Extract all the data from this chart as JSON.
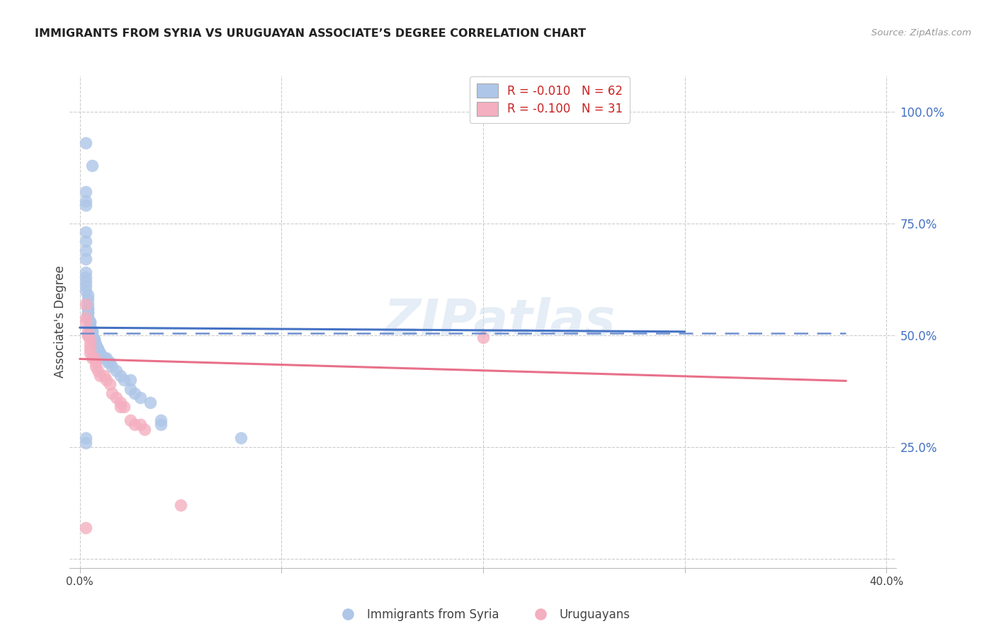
{
  "title": "IMMIGRANTS FROM SYRIA VS URUGUAYAN ASSOCIATE’S DEGREE CORRELATION CHART",
  "source": "Source: ZipAtlas.com",
  "ylabel": "Associate's Degree",
  "watermark": "ZIPatlas",
  "legend1_label": "R = -0.010   N = 62",
  "legend2_label": "R = -0.100   N = 31",
  "blue_color": "#aec6e8",
  "blue_line_color": "#4472C4",
  "blue_dashed_color": "#7090d0",
  "pink_color": "#f4afc0",
  "pink_line_color": "#e8708a",
  "blue_scatter_x": [
    0.003,
    0.006,
    0.003,
    0.003,
    0.003,
    0.003,
    0.003,
    0.003,
    0.003,
    0.003,
    0.003,
    0.003,
    0.003,
    0.003,
    0.004,
    0.004,
    0.004,
    0.004,
    0.004,
    0.004,
    0.004,
    0.004,
    0.004,
    0.005,
    0.005,
    0.005,
    0.005,
    0.005,
    0.006,
    0.006,
    0.006,
    0.006,
    0.006,
    0.006,
    0.007,
    0.007,
    0.007,
    0.008,
    0.008,
    0.008,
    0.009,
    0.009,
    0.01,
    0.01,
    0.012,
    0.013,
    0.014,
    0.015,
    0.016,
    0.018,
    0.02,
    0.022,
    0.025,
    0.025,
    0.027,
    0.03,
    0.035,
    0.04,
    0.04,
    0.08,
    0.003,
    0.003
  ],
  "blue_scatter_y": [
    0.93,
    0.88,
    0.82,
    0.8,
    0.79,
    0.73,
    0.71,
    0.69,
    0.67,
    0.64,
    0.63,
    0.62,
    0.61,
    0.6,
    0.59,
    0.58,
    0.57,
    0.56,
    0.56,
    0.55,
    0.55,
    0.54,
    0.54,
    0.53,
    0.53,
    0.52,
    0.52,
    0.51,
    0.51,
    0.51,
    0.5,
    0.5,
    0.5,
    0.5,
    0.49,
    0.49,
    0.49,
    0.48,
    0.48,
    0.48,
    0.47,
    0.47,
    0.46,
    0.46,
    0.45,
    0.45,
    0.44,
    0.44,
    0.43,
    0.42,
    0.41,
    0.4,
    0.4,
    0.38,
    0.37,
    0.36,
    0.35,
    0.31,
    0.3,
    0.27,
    0.27,
    0.26
  ],
  "pink_scatter_x": [
    0.003,
    0.003,
    0.003,
    0.004,
    0.004,
    0.004,
    0.005,
    0.005,
    0.005,
    0.005,
    0.006,
    0.007,
    0.008,
    0.008,
    0.009,
    0.01,
    0.012,
    0.013,
    0.015,
    0.016,
    0.018,
    0.02,
    0.02,
    0.022,
    0.025,
    0.027,
    0.03,
    0.032,
    0.2,
    0.05,
    0.003
  ],
  "pink_scatter_y": [
    0.57,
    0.54,
    0.53,
    0.51,
    0.5,
    0.5,
    0.49,
    0.48,
    0.47,
    0.46,
    0.45,
    0.45,
    0.44,
    0.43,
    0.42,
    0.41,
    0.41,
    0.4,
    0.39,
    0.37,
    0.36,
    0.35,
    0.34,
    0.34,
    0.31,
    0.3,
    0.3,
    0.29,
    0.495,
    0.12,
    0.07
  ],
  "xlim_max": 0.4,
  "ylim_min": -0.02,
  "ylim_max": 1.08,
  "blue_trend": [
    0.0,
    0.3,
    0.517,
    0.508
  ],
  "blue_dashed": [
    0.0,
    0.38,
    0.505,
    0.505
  ],
  "pink_trend": [
    0.0,
    0.38,
    0.447,
    0.398
  ],
  "ytick_vals": [
    0.0,
    0.25,
    0.5,
    0.75,
    1.0
  ],
  "ytick_labels": [
    "",
    "25.0%",
    "50.0%",
    "75.0%",
    "100.0%"
  ],
  "xtick_vals": [
    0.0,
    0.1,
    0.2,
    0.3,
    0.4
  ],
  "xtick_labels": [
    "0.0%",
    "",
    "",
    "",
    "40.0%"
  ]
}
